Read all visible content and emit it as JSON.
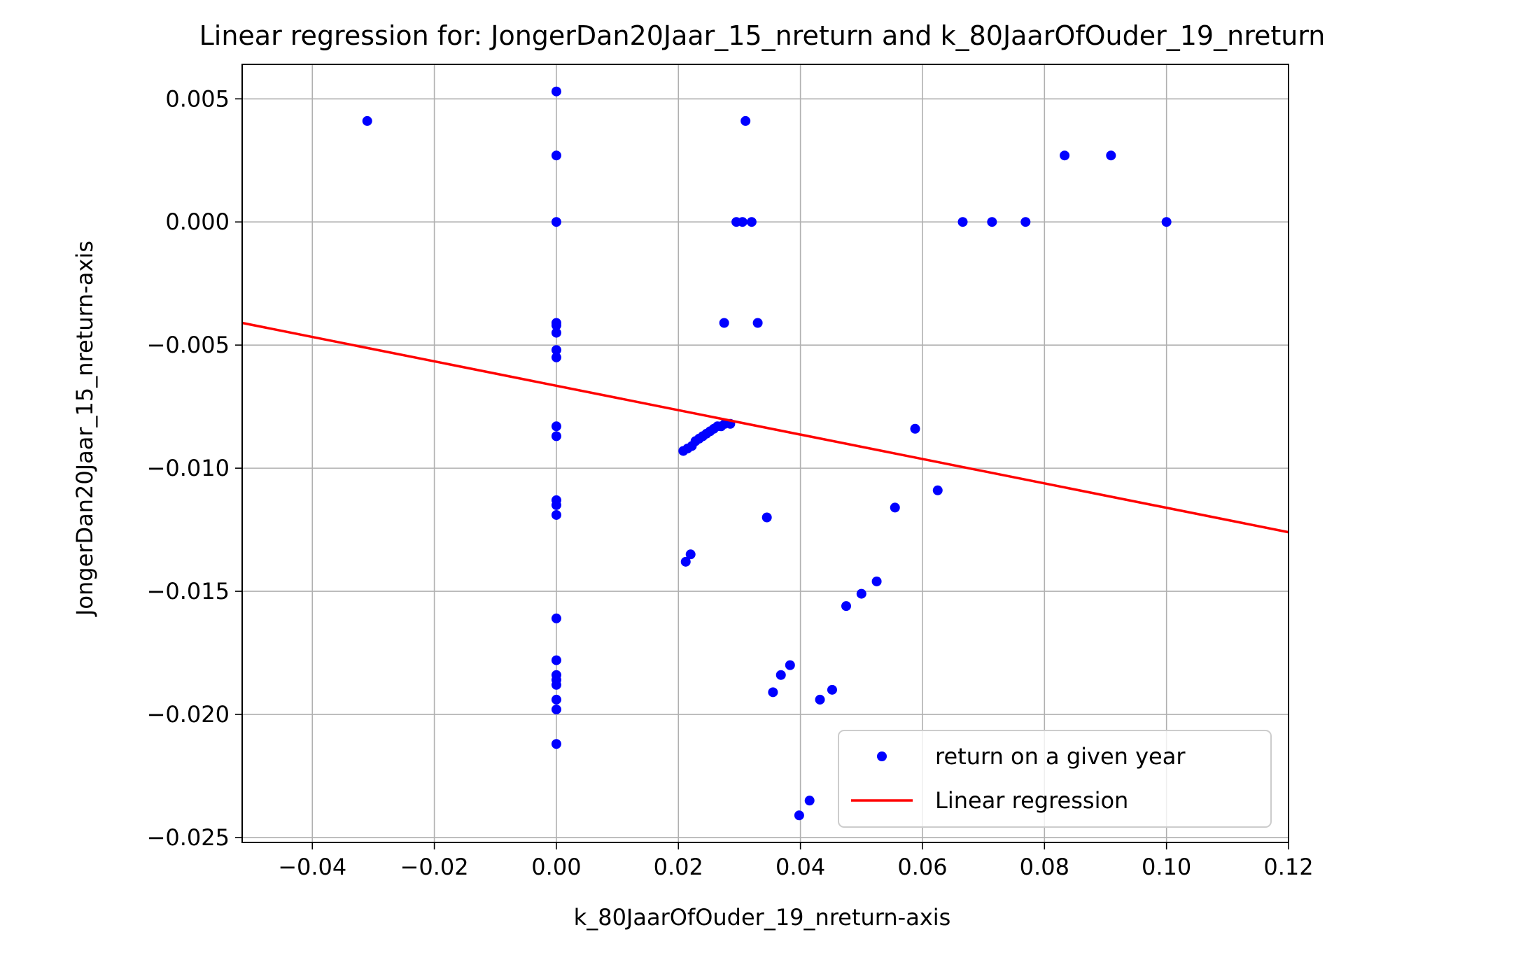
{
  "chart_data": {
    "type": "scatter",
    "title": "Linear regression for: JongerDan20Jaar_15_nreturn and k_80JaarOfOuder_19_nreturn",
    "xlabel": "k_80JaarOfOuder_19_nreturn-axis",
    "ylabel": "JongerDan20Jaar_15_nreturn-axis",
    "xlim": [
      -0.0515,
      0.12
    ],
    "ylim": [
      -0.0252,
      0.0064
    ],
    "xticks": [
      -0.04,
      -0.02,
      0.0,
      0.02,
      0.04,
      0.06,
      0.08,
      0.1,
      0.12
    ],
    "xtick_labels": [
      "−0.04",
      "−0.02",
      "0.00",
      "0.02",
      "0.04",
      "0.06",
      "0.08",
      "0.10",
      "0.12"
    ],
    "yticks": [
      0.005,
      0.0,
      -0.005,
      -0.01,
      -0.015,
      -0.02,
      -0.025
    ],
    "ytick_labels": [
      "0.005",
      "0.000",
      "−0.005",
      "−0.010",
      "−0.015",
      "−0.020",
      "−0.025"
    ],
    "grid": true,
    "legend_position": "lower-right",
    "colors": {
      "points": "#0000ff",
      "line": "#ff0000",
      "grid": "#b0b0b0"
    },
    "series": [
      {
        "name": "return on a given year",
        "kind": "scatter",
        "points": [
          [
            -0.031,
            0.0041
          ],
          [
            0.0,
            0.0053
          ],
          [
            0.0,
            0.0027
          ],
          [
            0.0,
            0.0
          ],
          [
            0.0,
            -0.0041
          ],
          [
            0.0,
            -0.0042
          ],
          [
            0.0,
            -0.0045
          ],
          [
            0.0,
            -0.0052
          ],
          [
            0.0,
            -0.0055
          ],
          [
            0.0,
            -0.0083
          ],
          [
            0.0,
            -0.0087
          ],
          [
            0.0,
            -0.0113
          ],
          [
            0.0,
            -0.0115
          ],
          [
            0.0,
            -0.0119
          ],
          [
            0.0,
            -0.0161
          ],
          [
            0.0,
            -0.0178
          ],
          [
            0.0,
            -0.0184
          ],
          [
            0.0,
            -0.0186
          ],
          [
            0.0,
            -0.0188
          ],
          [
            0.0,
            -0.0194
          ],
          [
            0.0,
            -0.0198
          ],
          [
            0.0,
            -0.0212
          ],
          [
            0.031,
            0.0041
          ],
          [
            0.0295,
            0.0
          ],
          [
            0.0305,
            0.0
          ],
          [
            0.032,
            0.0
          ],
          [
            0.0275,
            -0.0041
          ],
          [
            0.033,
            -0.0041
          ],
          [
            0.0208,
            -0.0093
          ],
          [
            0.0215,
            -0.0092
          ],
          [
            0.0222,
            -0.0091
          ],
          [
            0.0228,
            -0.0089
          ],
          [
            0.0234,
            -0.0088
          ],
          [
            0.024,
            -0.0087
          ],
          [
            0.0246,
            -0.0086
          ],
          [
            0.0252,
            -0.0085
          ],
          [
            0.0258,
            -0.0084
          ],
          [
            0.0264,
            -0.0083
          ],
          [
            0.027,
            -0.0083
          ],
          [
            0.0276,
            -0.0082
          ],
          [
            0.0285,
            -0.0082
          ],
          [
            0.0345,
            -0.012
          ],
          [
            0.0212,
            -0.0138
          ],
          [
            0.022,
            -0.0135
          ],
          [
            0.0355,
            -0.0191
          ],
          [
            0.0368,
            -0.0184
          ],
          [
            0.0383,
            -0.018
          ],
          [
            0.0398,
            -0.0241
          ],
          [
            0.0415,
            -0.0235
          ],
          [
            0.0432,
            -0.0194
          ],
          [
            0.0452,
            -0.019
          ],
          [
            0.0475,
            -0.0156
          ],
          [
            0.05,
            -0.0151
          ],
          [
            0.0525,
            -0.0146
          ],
          [
            0.0555,
            -0.0116
          ],
          [
            0.0588,
            -0.0084
          ],
          [
            0.0625,
            -0.0109
          ],
          [
            0.0666,
            0.0
          ],
          [
            0.0714,
            0.0
          ],
          [
            0.0769,
            0.0
          ],
          [
            0.0833,
            0.0027
          ],
          [
            0.0909,
            0.0027
          ],
          [
            0.1,
            0.0
          ]
        ]
      },
      {
        "name": "Linear regression",
        "kind": "line",
        "points": [
          [
            -0.0515,
            -0.0041
          ],
          [
            0.12,
            -0.0126
          ]
        ]
      }
    ]
  }
}
